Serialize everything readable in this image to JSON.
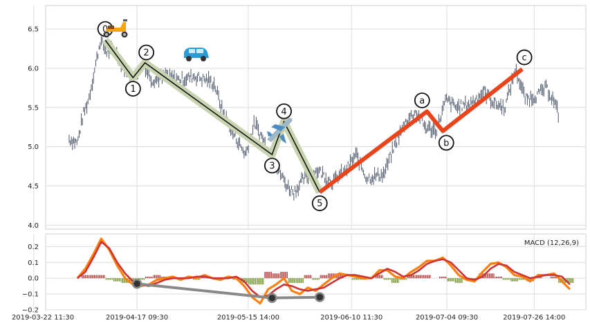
{
  "chart_data": [
    {
      "type": "line",
      "panel": "price",
      "ylim": [
        3.95,
        6.8
      ],
      "yticks": [
        "4.0",
        "4.5",
        "5.0",
        "5.5",
        "6.0",
        "6.5"
      ],
      "ytick_values": [
        4.0,
        4.5,
        5.0,
        5.5,
        6.0,
        6.5
      ],
      "grid": true,
      "colors": {
        "price": "#4a5568",
        "impulse": "#111111",
        "impulse_band": "#c8d3b0",
        "corrective": "#e8451c"
      },
      "waves": {
        "impulse": {
          "labels": [
            "0",
            "1",
            "2",
            "3",
            "4",
            "5"
          ],
          "x": [
            "2019-04-09",
            "2019-04-16",
            "2019-04-19",
            "2019-05-21",
            "2019-05-24",
            "2019-06-02"
          ],
          "y": [
            6.36,
            5.88,
            6.07,
            4.9,
            5.32,
            4.42
          ]
        },
        "corrective": {
          "labels": [
            "a",
            "b",
            "c"
          ],
          "x": [
            "2019-06-02",
            "2019-06-29",
            "2019-07-03",
            "2019-07-23"
          ],
          "y": [
            4.42,
            5.45,
            5.2,
            5.99
          ]
        }
      },
      "icons": [
        "scooter-icon",
        "car-icon",
        "airplane-icon"
      ]
    },
    {
      "type": "line",
      "panel": "macd",
      "title": "MACD (12,26,9)",
      "ylim": [
        -0.2,
        0.28
      ],
      "yticks": [
        "−0.2",
        "−0.1",
        "0.0",
        "0.1",
        "0.2"
      ],
      "ytick_values": [
        -0.2,
        -0.1,
        0.0,
        0.1,
        0.2
      ],
      "xlim": [
        "2019-03-25",
        "2019-08-08"
      ],
      "xticks": [
        "2019-03-22 11:30",
        "2019-04-17 09:30",
        "2019-05-15 14:00",
        "2019-06-10 11:30",
        "2019-07-04 09:30",
        "2019-07-26 14:00"
      ],
      "xtick_values": [
        "2019-03-22",
        "2019-04-17",
        "2019-05-15",
        "2019-06-10",
        "2019-07-04",
        "2019-07-26"
      ],
      "grid": true,
      "colors": {
        "macd": "#ff7f0e",
        "signal": "#cc3333",
        "hist_pos": "#a83232",
        "hist_neg": "#6b8e23",
        "divergence": "#888888"
      },
      "x": [
        "2019-04-02",
        "2019-04-04",
        "2019-04-06",
        "2019-04-08",
        "2019-04-10",
        "2019-04-12",
        "2019-04-14",
        "2019-04-16",
        "2019-04-18",
        "2019-04-20",
        "2019-04-22",
        "2019-04-24",
        "2019-04-26",
        "2019-04-28",
        "2019-04-30",
        "2019-05-02",
        "2019-05-04",
        "2019-05-06",
        "2019-05-08",
        "2019-05-10",
        "2019-05-12",
        "2019-05-14",
        "2019-05-16",
        "2019-05-18",
        "2019-05-20",
        "2019-05-22",
        "2019-05-24",
        "2019-05-26",
        "2019-05-28",
        "2019-05-30",
        "2019-06-01",
        "2019-06-03",
        "2019-06-05",
        "2019-06-07",
        "2019-06-09",
        "2019-06-11",
        "2019-06-13",
        "2019-06-15",
        "2019-06-17",
        "2019-06-19",
        "2019-06-21",
        "2019-06-23",
        "2019-06-25",
        "2019-06-27",
        "2019-06-29",
        "2019-07-01",
        "2019-07-03",
        "2019-07-05",
        "2019-07-07",
        "2019-07-09",
        "2019-07-11",
        "2019-07-13",
        "2019-07-15",
        "2019-07-17",
        "2019-07-19",
        "2019-07-21",
        "2019-07-23",
        "2019-07-25",
        "2019-07-27",
        "2019-07-29",
        "2019-07-31",
        "2019-08-02",
        "2019-08-04"
      ],
      "series": [
        {
          "key": "macd",
          "values": [
            0.0,
            0.06,
            0.15,
            0.25,
            0.18,
            0.08,
            0.0,
            -0.04,
            -0.05,
            -0.04,
            -0.01,
            0.0,
            0.01,
            -0.01,
            0.01,
            0.0,
            0.02,
            0.0,
            -0.01,
            0.01,
            0.0,
            -0.05,
            -0.12,
            -0.16,
            -0.07,
            -0.04,
            0.0,
            -0.08,
            -0.1,
            -0.06,
            -0.08,
            -0.04,
            0.0,
            0.03,
            0.02,
            0.01,
            0.0,
            0.0,
            0.05,
            0.05,
            0.01,
            0.0,
            0.04,
            0.07,
            0.11,
            0.11,
            0.13,
            0.08,
            0.02,
            -0.01,
            -0.02,
            0.04,
            0.09,
            0.1,
            0.07,
            0.02,
            0.01,
            -0.02,
            0.02,
            0.02,
            0.03,
            -0.02,
            -0.07
          ]
        },
        {
          "key": "signal",
          "values": [
            0.0,
            0.04,
            0.13,
            0.23,
            0.19,
            0.1,
            0.03,
            -0.02,
            -0.04,
            -0.05,
            -0.03,
            -0.01,
            0.0,
            0.0,
            0.0,
            0.01,
            0.01,
            0.0,
            0.0,
            0.0,
            0.01,
            -0.02,
            -0.08,
            -0.12,
            -0.11,
            -0.07,
            -0.04,
            -0.05,
            -0.07,
            -0.08,
            -0.07,
            -0.06,
            -0.03,
            0.0,
            0.02,
            0.02,
            0.01,
            0.0,
            0.03,
            0.06,
            0.04,
            0.01,
            0.02,
            0.05,
            0.09,
            0.11,
            0.12,
            0.1,
            0.05,
            0.0,
            -0.01,
            0.01,
            0.06,
            0.09,
            0.08,
            0.04,
            0.02,
            0.0,
            0.01,
            0.02,
            0.02,
            0.01,
            -0.04
          ]
        }
      ],
      "histogram": [
        0.0,
        0.02,
        0.02,
        0.02,
        -0.01,
        -0.02,
        -0.03,
        -0.02,
        -0.01,
        0.01,
        0.02,
        0.01,
        0.01,
        -0.01,
        0.01,
        -0.01,
        0.01,
        0.0,
        -0.01,
        0.01,
        -0.01,
        -0.03,
        -0.04,
        -0.04,
        0.04,
        0.03,
        0.04,
        -0.03,
        -0.03,
        0.02,
        -0.01,
        0.02,
        0.03,
        0.03,
        0.0,
        -0.01,
        -0.01,
        0.0,
        0.02,
        -0.01,
        -0.03,
        -0.01,
        0.02,
        0.02,
        0.02,
        0.0,
        0.01,
        -0.02,
        -0.03,
        -0.01,
        -0.01,
        0.03,
        0.03,
        0.01,
        -0.01,
        -0.02,
        -0.01,
        -0.02,
        0.01,
        0.0,
        0.01,
        -0.03,
        -0.03
      ],
      "divergence": {
        "x": [
          "2019-04-17",
          "2019-05-21",
          "2019-06-02"
        ],
        "y": [
          -0.035,
          -0.125,
          -0.12
        ]
      }
    }
  ]
}
